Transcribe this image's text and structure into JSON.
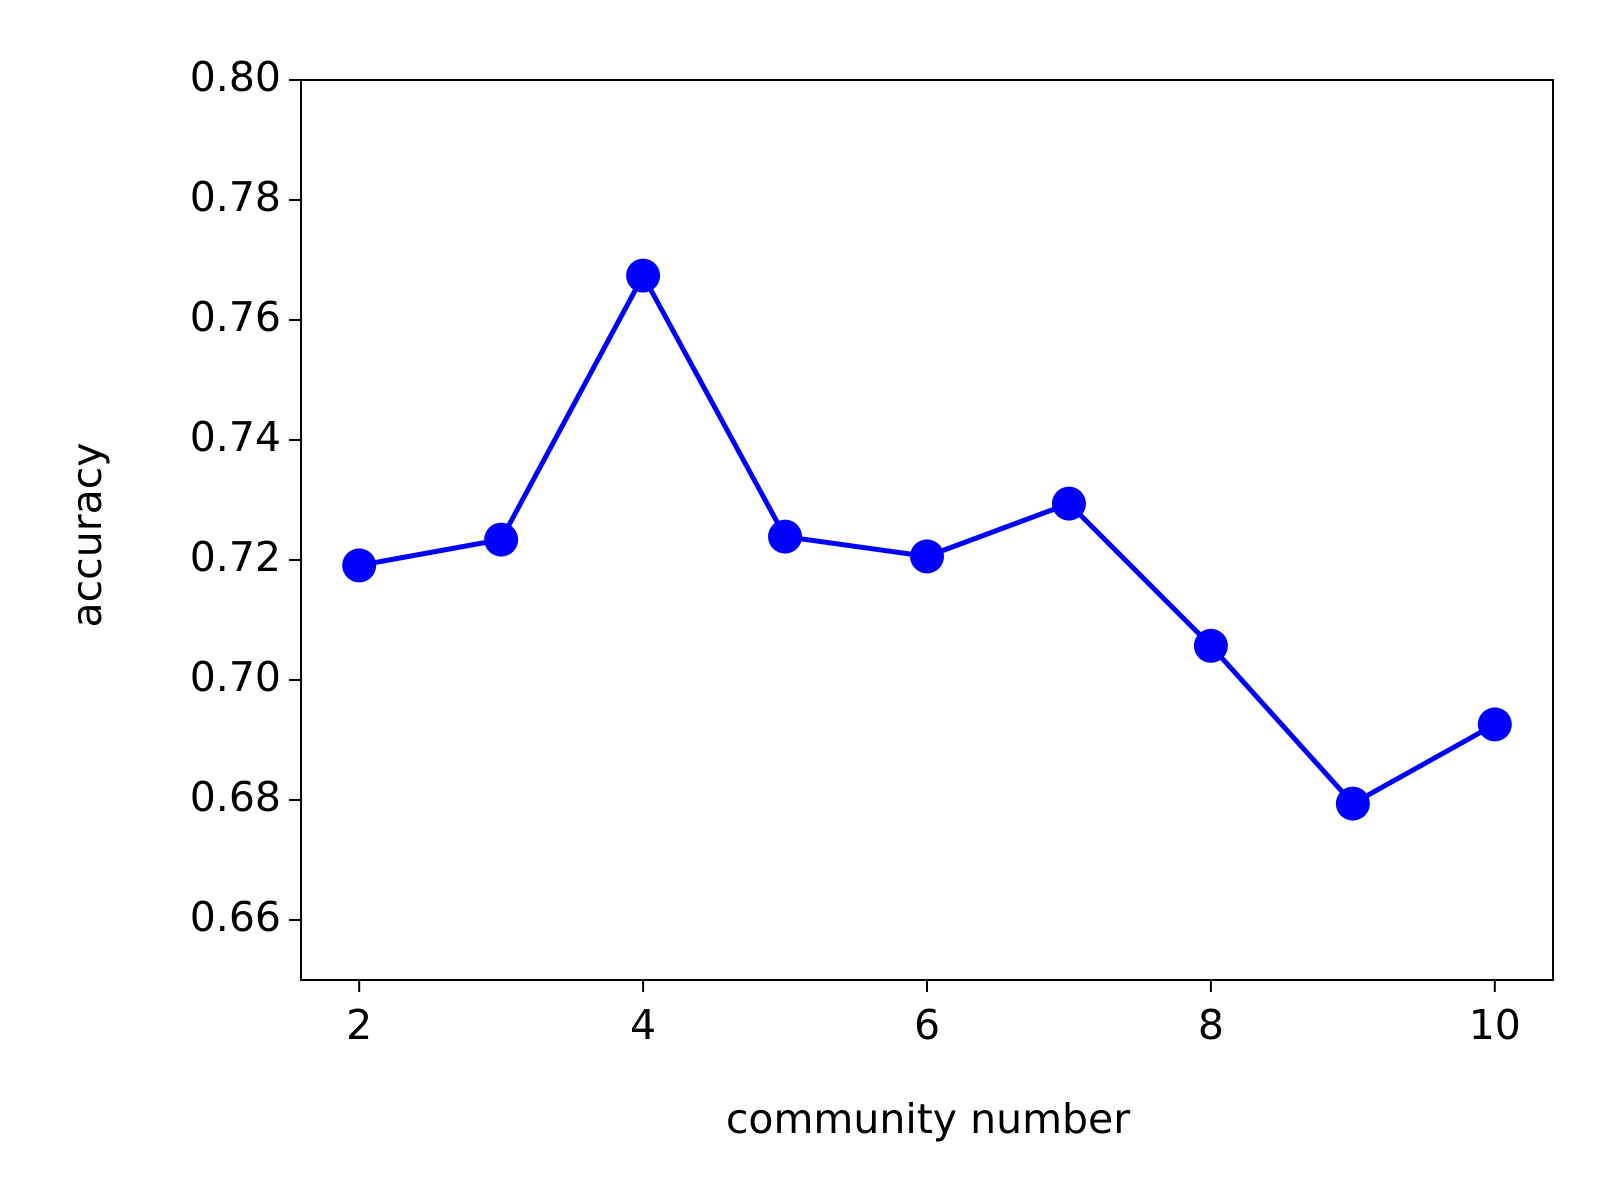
{
  "chart_data": {
    "type": "line",
    "x_label": "community number",
    "y_label": "accuracy",
    "x": [
      2,
      3,
      4,
      5,
      6,
      7,
      8,
      9,
      10
    ],
    "series": [
      {
        "color": "#0000ff",
        "values": [
          0.7191,
          0.7234,
          0.7674,
          0.7239,
          0.7206,
          0.7294,
          0.7057,
          0.6794,
          0.6926
        ]
      }
    ],
    "xlim": [
      1.59,
      10.41
    ],
    "ylim": [
      0.65,
      0.8
    ],
    "xticks": [
      2,
      4,
      6,
      8,
      10
    ],
    "yticks": [
      0.66,
      0.68,
      {
        "value": 0.7,
        "label": "0.70"
      },
      0.72,
      0.74,
      0.76,
      0.78,
      {
        "value": 0.8,
        "label": "0.80"
      }
    ],
    "grid": false,
    "markers": true
  }
}
